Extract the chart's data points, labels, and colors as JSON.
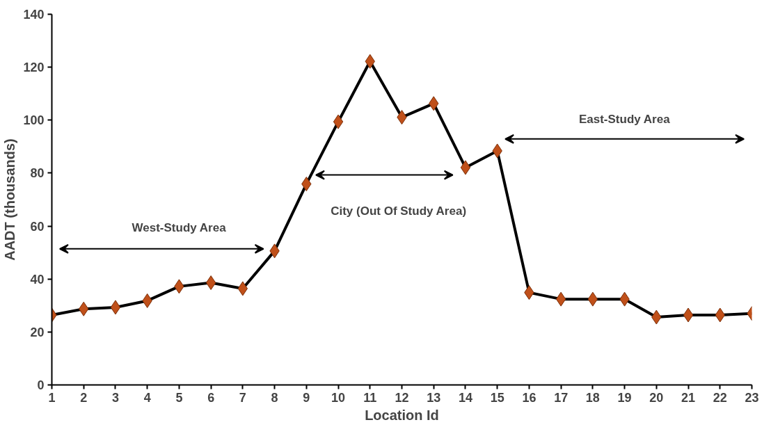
{
  "chart_data": {
    "type": "line",
    "xlabel": "Location Id",
    "ylabel": "AADT (thousands)",
    "x": [
      1,
      2,
      3,
      4,
      5,
      6,
      7,
      8,
      9,
      10,
      11,
      12,
      13,
      14,
      15,
      16,
      17,
      18,
      19,
      20,
      21,
      22,
      23
    ],
    "series": [
      {
        "color": "#000000",
        "colors": [
          "#c0501a",
          "#c0501a",
          "#c0501a",
          "#c0501a",
          "#c0501a",
          "#c0501a",
          "#c0501a",
          "#c0501a",
          "#c0501a",
          "#c0501a",
          "#c0501a",
          "#c0501a",
          "#c0501a",
          "#c0501a",
          "#c0501a",
          "#c0501a",
          "#c0501a",
          "#c0501a",
          "#c0501a",
          "#c0501a",
          "#c0501a",
          "#c0501a",
          "#c0501a"
        ],
        "values": [
          26.4,
          28.7,
          29.3,
          31.8,
          37.2,
          38.6,
          36.4,
          50.6,
          75.9,
          99.4,
          122.2,
          101.1,
          106.3,
          82.1,
          88.4,
          34.9,
          32.4,
          32.4,
          32.4,
          25.6,
          26.4,
          26.4,
          27.0
        ]
      }
    ],
    "xlim": [
      1,
      23
    ],
    "xticks": [
      1,
      2,
      3,
      4,
      5,
      6,
      7,
      8,
      9,
      10,
      11,
      12,
      13,
      14,
      15,
      16,
      17,
      18,
      19,
      20,
      21,
      22,
      23
    ],
    "ylim": [
      0,
      140
    ],
    "yticks": [
      0,
      20,
      40,
      60,
      80,
      100,
      120,
      140
    ],
    "marker": "diamond",
    "line_style": "solid",
    "grid": false,
    "annotations": [
      "West-Study Area",
      "City (Out Of Study Area)",
      "East-Study Area"
    ]
  }
}
